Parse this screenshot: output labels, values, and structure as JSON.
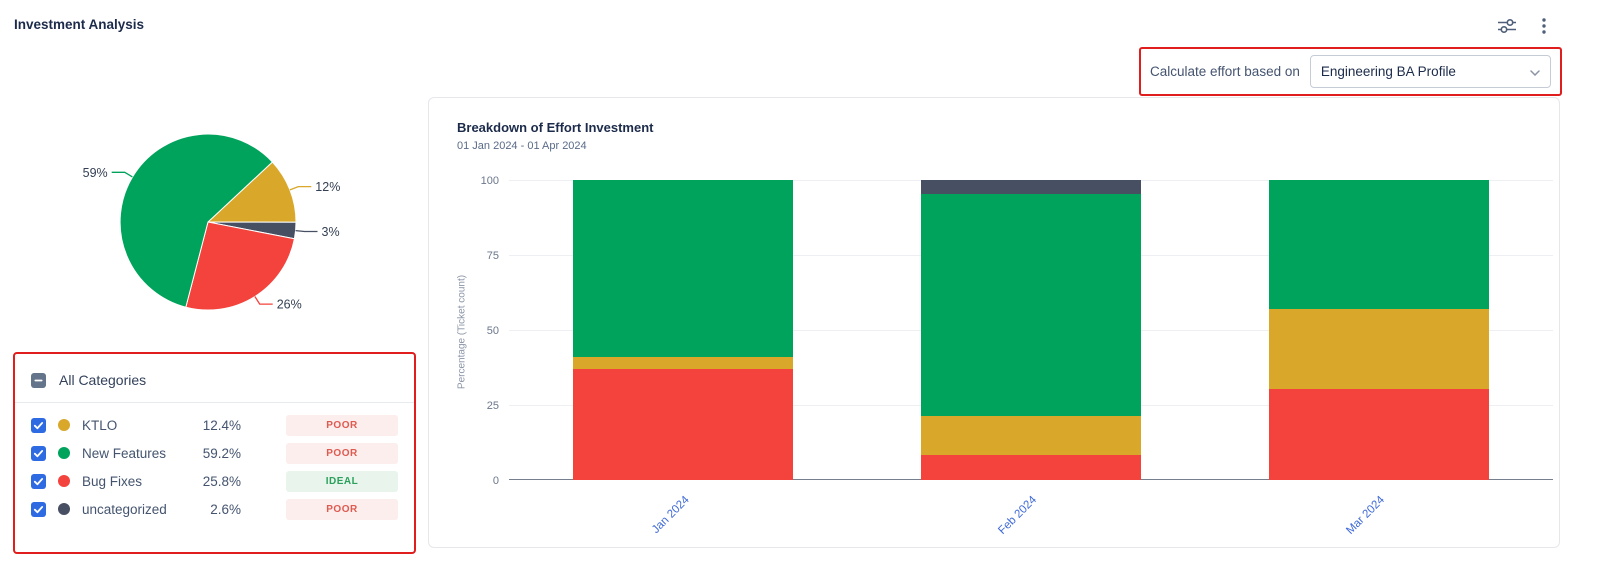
{
  "header": {
    "title": "Investment Analysis"
  },
  "toolbar": {
    "icons": [
      "tune-icon",
      "kebab-menu-icon"
    ]
  },
  "controls": {
    "label": "Calculate effort based on",
    "value": "Engineering BA Profile",
    "chevron_icon": "chevron-down-icon"
  },
  "colors": {
    "ktlo": "#D9A82A",
    "new_features": "#00A35B",
    "bug_fixes": "#F4423C",
    "uncategorized": "#474F63",
    "annotation_red": "#E01E1E",
    "checkbox_blue": "#2E6BE2",
    "checkbox_slate": "#64748B",
    "x_label_blue": "#3F6AD8",
    "status": {
      "POOR": {
        "bg": "#FBEEED",
        "text": "#DF5A50"
      },
      "IDEAL": {
        "bg": "#E9F5EC",
        "text": "#2BA05C"
      }
    }
  },
  "categories_panel": {
    "all_label": "All Categories",
    "rows": [
      {
        "name": "KTLO",
        "percent": "12.4%",
        "status": "POOR",
        "color_key": "ktlo",
        "checked": true
      },
      {
        "name": "New Features",
        "percent": "59.2%",
        "status": "POOR",
        "color_key": "new_features",
        "checked": true
      },
      {
        "name": "Bug Fixes",
        "percent": "25.8%",
        "status": "IDEAL",
        "color_key": "bug_fixes",
        "checked": true
      },
      {
        "name": "uncategorized",
        "percent": "2.6%",
        "status": "POOR",
        "color_key": "uncategorized",
        "checked": true
      }
    ]
  },
  "chart_data": [
    {
      "type": "pie",
      "start_angle_deg": 47,
      "slices": [
        {
          "name": "KTLO",
          "value": 12,
          "label": "12%",
          "color_key": "ktlo"
        },
        {
          "name": "uncategorized",
          "value": 3,
          "label": "3%",
          "color_key": "uncategorized"
        },
        {
          "name": "Bug Fixes",
          "value": 26,
          "label": "26%",
          "color_key": "bug_fixes"
        },
        {
          "name": "New Features",
          "value": 59,
          "label": "59%",
          "color_key": "new_features"
        }
      ]
    },
    {
      "type": "bar",
      "stacked": true,
      "title": "Breakdown of Effort Investment",
      "subtitle": "01 Jan 2024 - 01 Apr 2024",
      "ylabel": "Percentage (Ticket count)",
      "categories": [
        "Jan 2024",
        "Feb 2024",
        "Mar 2024"
      ],
      "series": [
        {
          "name": "Bug Fixes",
          "color_key": "bug_fixes",
          "values": [
            37,
            8.5,
            30.5
          ]
        },
        {
          "name": "KTLO",
          "color_key": "ktlo",
          "values": [
            4,
            13,
            26.5
          ]
        },
        {
          "name": "New Features",
          "color_key": "new_features",
          "values": [
            59,
            74,
            43
          ]
        },
        {
          "name": "uncategorized",
          "color_key": "uncategorized",
          "values": [
            0,
            4.5,
            0
          ]
        }
      ],
      "ylim": [
        0,
        100
      ],
      "yticks": [
        0,
        25,
        50,
        75,
        100
      ],
      "grid": true,
      "legend": "none"
    }
  ]
}
